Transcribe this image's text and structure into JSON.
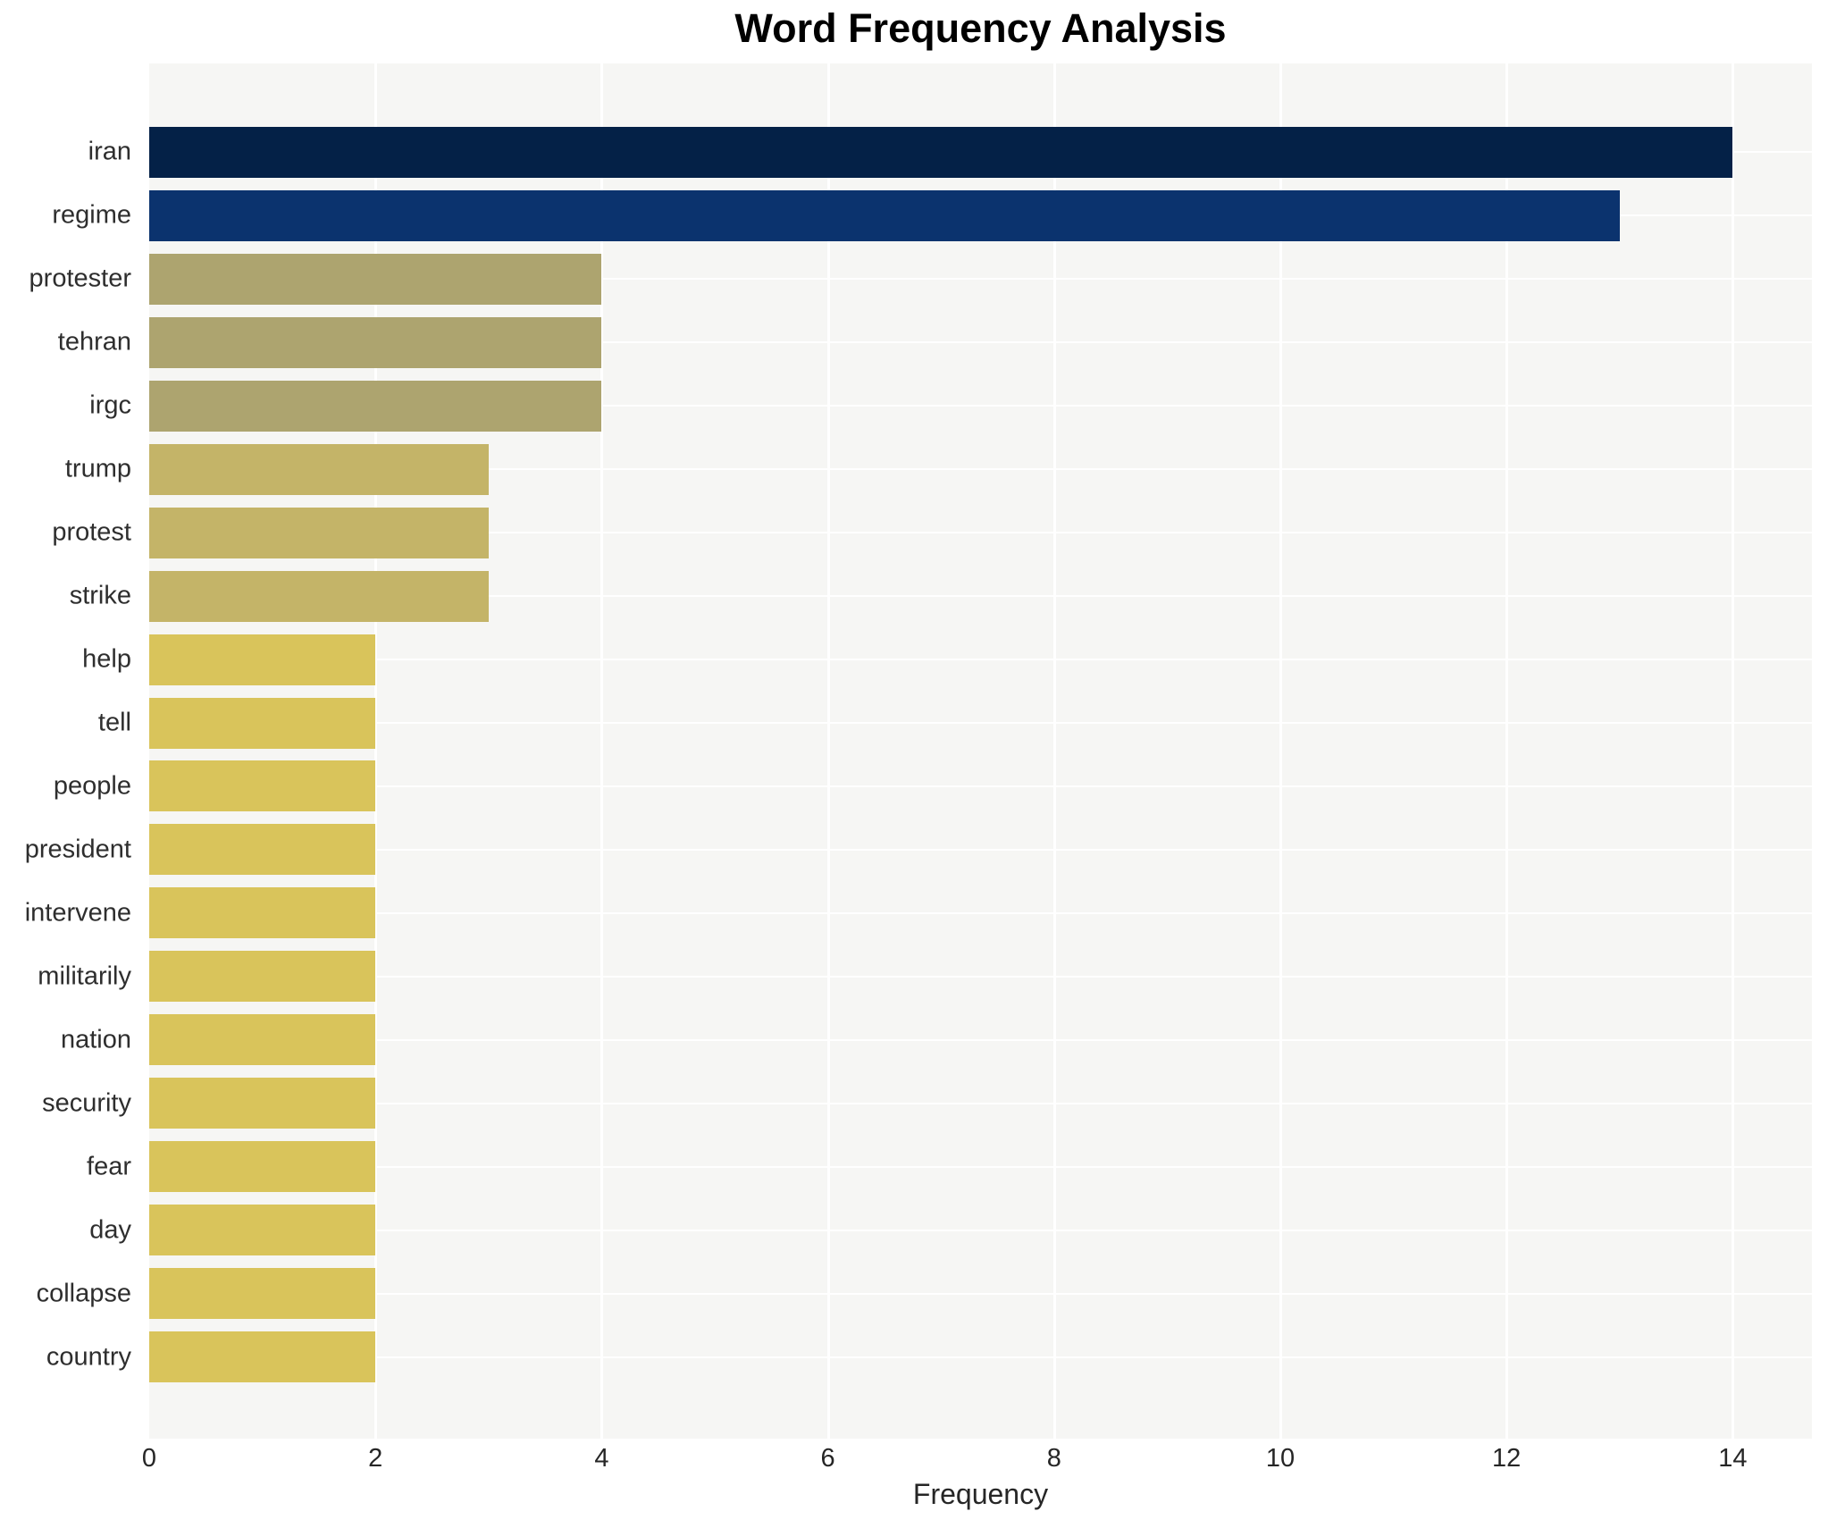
{
  "chart_data": {
    "type": "bar",
    "orientation": "horizontal",
    "title": "Word Frequency Analysis",
    "xlabel": "Frequency",
    "ylabel": "",
    "categories": [
      "iran",
      "regime",
      "protester",
      "tehran",
      "irgc",
      "trump",
      "protest",
      "strike",
      "help",
      "tell",
      "people",
      "president",
      "intervene",
      "militarily",
      "nation",
      "security",
      "fear",
      "day",
      "collapse",
      "country"
    ],
    "values": [
      14,
      13,
      4,
      4,
      4,
      3,
      3,
      3,
      2,
      2,
      2,
      2,
      2,
      2,
      2,
      2,
      2,
      2,
      2,
      2
    ],
    "bar_colors": [
      "#042147",
      "#0b336e",
      "#ada46f",
      "#ada46f",
      "#ada46f",
      "#c4b468",
      "#c4b468",
      "#c4b468",
      "#d9c45b",
      "#d9c45b",
      "#d9c45b",
      "#d9c45b",
      "#d9c45b",
      "#d9c45b",
      "#d9c45b",
      "#d9c45b",
      "#d9c45b",
      "#d9c45b",
      "#d9c45b",
      "#d9c45b"
    ],
    "xticks": [
      0,
      2,
      4,
      6,
      8,
      10,
      12,
      14
    ],
    "xlim": [
      0,
      14.7
    ],
    "grid": true,
    "legend": "none",
    "plot_bg_color": "#f6f6f4",
    "grid_color": "#ffffff",
    "title_color": "#000000",
    "tick_label_color": "#262626",
    "category_label_color": "#2e2e2e"
  }
}
